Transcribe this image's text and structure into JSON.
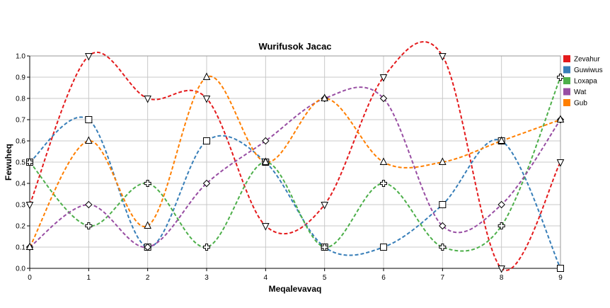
{
  "chart_data": {
    "type": "line",
    "title": "Wurifusok Jacac",
    "xlabel": "Meqalevavaq",
    "ylabel": "Fewuheq",
    "x": [
      0,
      1,
      2,
      3,
      4,
      5,
      6,
      7,
      8,
      9
    ],
    "xlim": [
      0,
      9
    ],
    "ylim": [
      0,
      1.0
    ],
    "x_ticks": [
      "0",
      "1",
      "2",
      "3",
      "4",
      "5",
      "6",
      "7",
      "8",
      "9"
    ],
    "y_ticks": [
      "0.0",
      "0.1",
      "0.2",
      "0.3",
      "0.4",
      "0.5",
      "0.6",
      "0.7",
      "0.8",
      "0.9",
      "1.0"
    ],
    "grid": true,
    "legend_position": "right",
    "line_style": "dashed smooth",
    "series": [
      {
        "name": "Zevahur",
        "color": "#e41a1c",
        "marker": "triangle-down",
        "values": [
          0.3,
          1.0,
          0.8,
          0.8,
          0.2,
          0.3,
          0.9,
          1.0,
          0.0,
          0.5
        ]
      },
      {
        "name": "Guwiwus",
        "color": "#377eb8",
        "marker": "square",
        "values": [
          0.5,
          0.7,
          0.1,
          0.6,
          0.5,
          0.1,
          0.1,
          0.3,
          0.6,
          0.0
        ]
      },
      {
        "name": "Loxapa",
        "color": "#4daf4a",
        "marker": "cross",
        "values": [
          0.5,
          0.2,
          0.4,
          0.1,
          0.5,
          0.1,
          0.4,
          0.1,
          0.2,
          0.9
        ]
      },
      {
        "name": "Wat",
        "color": "#984ea3",
        "marker": "diamond",
        "values": [
          0.1,
          0.3,
          0.1,
          0.4,
          0.6,
          0.8,
          0.8,
          0.2,
          0.3,
          0.7
        ]
      },
      {
        "name": "Gub",
        "color": "#ff7f00",
        "marker": "triangle-up",
        "values": [
          0.1,
          0.6,
          0.2,
          0.9,
          0.5,
          0.8,
          0.5,
          0.5,
          0.6,
          0.7
        ]
      }
    ]
  }
}
